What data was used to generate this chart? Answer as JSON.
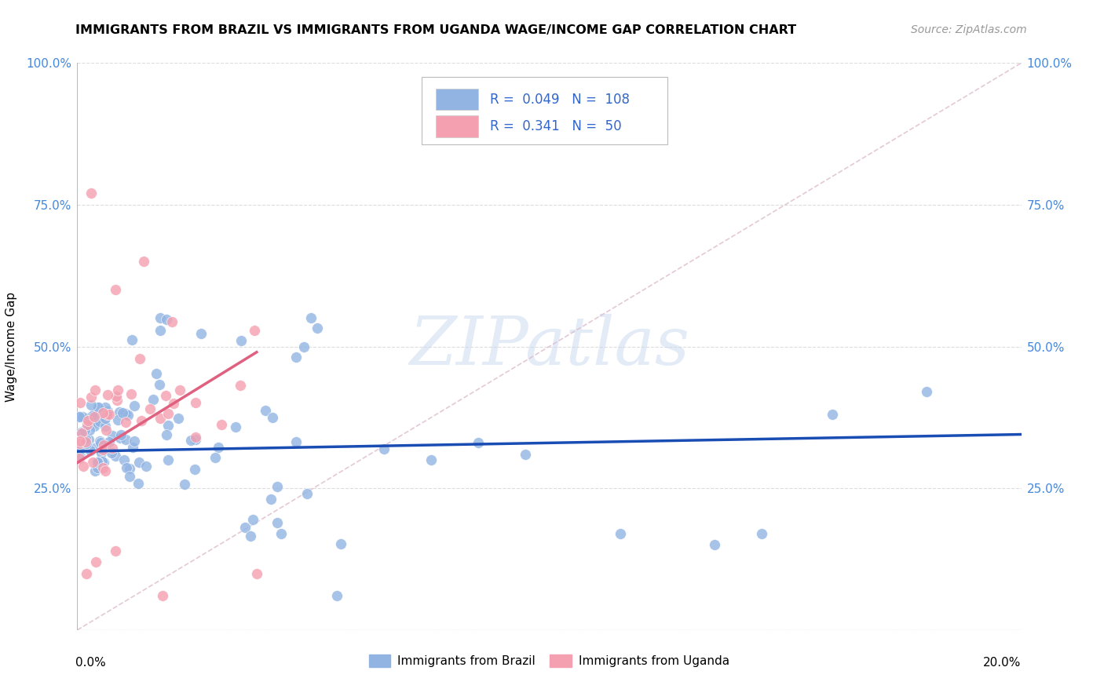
{
  "title": "IMMIGRANTS FROM BRAZIL VS IMMIGRANTS FROM UGANDA WAGE/INCOME GAP CORRELATION CHART",
  "source": "Source: ZipAtlas.com",
  "ylabel": "Wage/Income Gap",
  "brazil_color": "#92b4e3",
  "uganda_color": "#f4a0b0",
  "brazil_R": 0.049,
  "brazil_N": 108,
  "uganda_R": 0.341,
  "uganda_N": 50,
  "xmin": 0.0,
  "xmax": 0.2,
  "ymin": 0.0,
  "ymax": 1.0,
  "legend_text_color": "#3366cc",
  "watermark": "ZIPatlas",
  "trend_brazil_color": "#1a4db3",
  "trend_uganda_color": "#e06080",
  "ref_line_color": "#cccccc",
  "grid_color": "#dddddd",
  "ytick_color": "#4488dd",
  "ytick_values": [
    0.0,
    0.25,
    0.5,
    0.75,
    1.0
  ],
  "ytick_labels": [
    "",
    "25.0%",
    "50.0%",
    "75.0%",
    "100.0%"
  ],
  "title_fontsize": 11.5,
  "source_fontsize": 10,
  "tick_fontsize": 11,
  "legend_fontsize": 12,
  "ylabel_fontsize": 11
}
